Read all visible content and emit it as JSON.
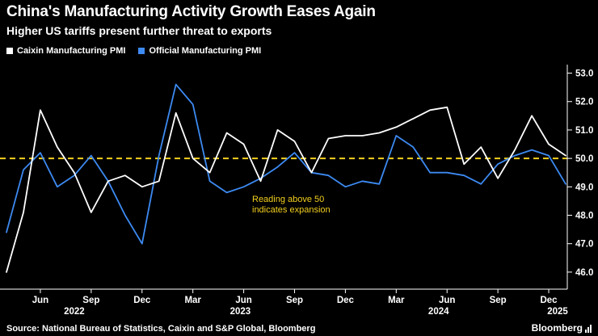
{
  "header": {
    "title": "China's Manufacturing Activity Growth Eases Again",
    "subtitle": "Higher US tariffs present further threat to exports"
  },
  "legend": [
    {
      "label": "Caixin Manufacturing PMI",
      "color": "#ffffff"
    },
    {
      "label": "Official Manufacturing PMI",
      "color": "#3d8af2"
    }
  ],
  "annotation": {
    "line1": "Reading above 50",
    "line2": "indicates expansion",
    "color": "#f3cf1f"
  },
  "footer": {
    "source": "Source: National Bureau of Statistics, Caixin and S&P Global, Bloomberg",
    "brand": "Bloomberg"
  },
  "chart_data": {
    "type": "line",
    "title": "China's Manufacturing Activity Growth Eases Again",
    "x_unit": "month",
    "x_start": "Apr 2022",
    "x_end": "Jan 2025",
    "ylim": [
      45.4,
      53.3
    ],
    "grid": false,
    "legend_position": "top-left",
    "axis_color": "#ffffff",
    "reference_line": {
      "value": 50.0,
      "style": "dashed",
      "color": "#f3cf1f"
    },
    "y_ticks": [
      {
        "v": 46,
        "label": "46.0"
      },
      {
        "v": 47,
        "label": "47.0"
      },
      {
        "v": 48,
        "label": "48.0"
      },
      {
        "v": 49,
        "label": "49.0"
      },
      {
        "v": 50,
        "label": "50.0"
      },
      {
        "v": 51,
        "label": "51.0"
      },
      {
        "v": 52,
        "label": "52.0"
      },
      {
        "v": 53,
        "label": "53.0"
      }
    ],
    "x_ticks": [
      {
        "i": 2,
        "label": "Jun"
      },
      {
        "i": 5,
        "label": "Sep"
      },
      {
        "i": 8,
        "label": "Dec"
      },
      {
        "i": 11,
        "label": "Mar"
      },
      {
        "i": 14,
        "label": "Jun"
      },
      {
        "i": 17,
        "label": "Sep"
      },
      {
        "i": 20,
        "label": "Dec"
      },
      {
        "i": 23,
        "label": "Mar"
      },
      {
        "i": 26,
        "label": "Jun"
      },
      {
        "i": 29,
        "label": "Sep"
      },
      {
        "i": 32,
        "label": "Dec"
      }
    ],
    "year_labels": [
      {
        "i": 4,
        "label": "2022"
      },
      {
        "i": 13.8,
        "label": "2023"
      },
      {
        "i": 25.5,
        "label": "2024"
      },
      {
        "i": 33,
        "label": "2025"
      }
    ],
    "series": [
      {
        "name": "Caixin Manufacturing PMI",
        "color": "#ffffff",
        "values": [
          46.0,
          48.1,
          51.7,
          50.4,
          49.5,
          48.1,
          49.2,
          49.4,
          49.0,
          49.2,
          51.6,
          50.0,
          49.5,
          50.9,
          50.5,
          49.2,
          51.0,
          50.6,
          49.5,
          50.7,
          50.8,
          50.8,
          50.9,
          51.1,
          51.4,
          51.7,
          51.8,
          49.8,
          50.4,
          49.3,
          50.3,
          51.5,
          50.5,
          50.1
        ]
      },
      {
        "name": "Official Manufacturing PMI",
        "color": "#3d8af2",
        "values": [
          47.4,
          49.6,
          50.2,
          49.0,
          49.4,
          50.1,
          49.2,
          48.0,
          47.0,
          50.1,
          52.6,
          51.9,
          49.2,
          48.8,
          49.0,
          49.3,
          49.7,
          50.2,
          49.5,
          49.4,
          49.0,
          49.2,
          49.1,
          50.8,
          50.4,
          49.5,
          49.5,
          49.4,
          49.1,
          49.8,
          50.1,
          50.3,
          50.1,
          49.1
        ]
      }
    ]
  }
}
